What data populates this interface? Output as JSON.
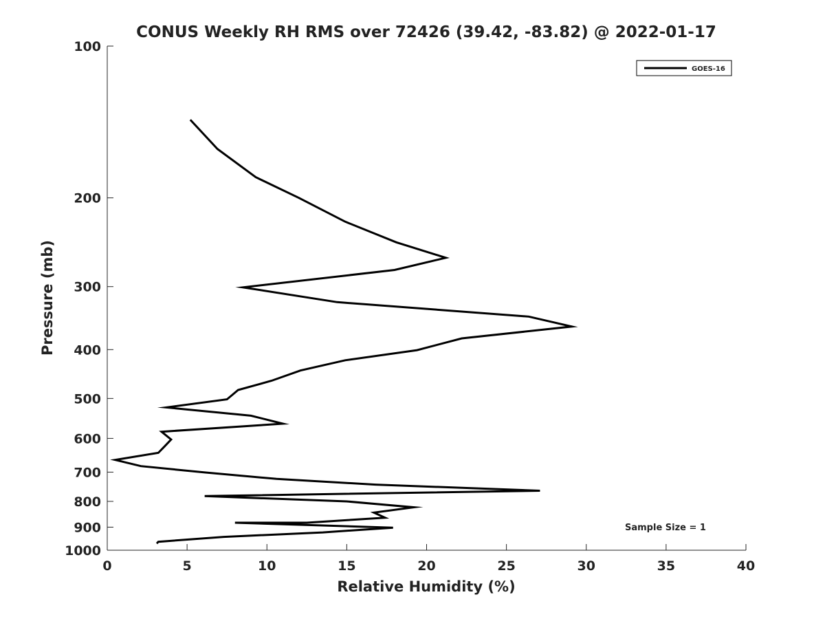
{
  "chart_data": {
    "type": "line",
    "title": "CONUS Weekly RH RMS over 72426 (39.42, -83.82) @ 2022-01-17",
    "xlabel": "Relative Humidity (%)",
    "ylabel": "Pressure (mb)",
    "xlim": [
      0,
      40
    ],
    "ylim": [
      100,
      1000
    ],
    "yscale": "log",
    "y_reversed": true,
    "xticks": [
      0,
      5,
      10,
      15,
      20,
      25,
      30,
      35,
      40
    ],
    "yticks": [
      100,
      200,
      300,
      400,
      500,
      600,
      700,
      800,
      900,
      1000
    ],
    "grid": false,
    "legend_position": "top-right",
    "line_color": "#000000",
    "annotation": "Sample Size = 1",
    "series": [
      {
        "name": "GOES-16",
        "points": [
          [
            5.2,
            140
          ],
          [
            6.9,
            160
          ],
          [
            9.3,
            182
          ],
          [
            12.0,
            200
          ],
          [
            14.9,
            223
          ],
          [
            18.1,
            245
          ],
          [
            21.2,
            263
          ],
          [
            18.0,
            278
          ],
          [
            8.5,
            301
          ],
          [
            14.4,
            322
          ],
          [
            26.4,
            344
          ],
          [
            29.1,
            360
          ],
          [
            22.2,
            380
          ],
          [
            19.4,
            401
          ],
          [
            14.9,
            420
          ],
          [
            12.1,
            440
          ],
          [
            10.3,
            461
          ],
          [
            8.2,
            481
          ],
          [
            7.5,
            502
          ],
          [
            3.7,
            521
          ],
          [
            9.0,
            541
          ],
          [
            11.0,
            561
          ],
          [
            3.4,
            582
          ],
          [
            4.0,
            603
          ],
          [
            3.6,
            622
          ],
          [
            3.2,
            641
          ],
          [
            0.5,
            662
          ],
          [
            2.1,
            681
          ],
          [
            6.1,
            701
          ],
          [
            10.6,
            722
          ],
          [
            16.8,
            741
          ],
          [
            27.1,
            762
          ],
          [
            6.1,
            781
          ],
          [
            15.0,
            800
          ],
          [
            19.2,
            822
          ],
          [
            16.7,
            842
          ],
          [
            17.4,
            862
          ],
          [
            12.5,
            882
          ],
          [
            8.0,
            882
          ],
          [
            17.9,
            902
          ],
          [
            13.5,
            922
          ],
          [
            7.3,
            941
          ],
          [
            3.2,
            962
          ],
          [
            3.1,
            970
          ]
        ]
      }
    ]
  }
}
